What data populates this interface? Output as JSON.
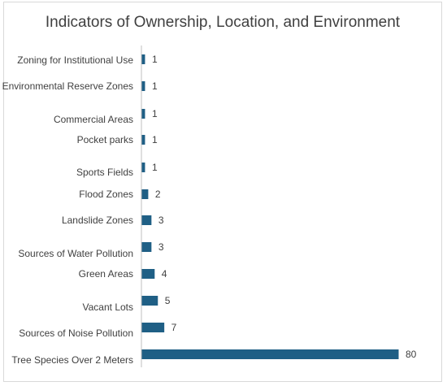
{
  "chart_data": {
    "type": "bar",
    "orientation": "horizontal",
    "title": "Indicators of Ownership, Location, and Environment",
    "categories": [
      "Zoning for Institutional Use",
      "Environmental Reserve Zones",
      "Commercial Areas",
      "Pocket parks",
      "Sports Fields",
      "Flood Zones",
      "Landslide Zones",
      "Sources of Water Pollution",
      "Green Areas",
      "Vacant Lots",
      "Sources of Noise Pollution",
      "Tree Species Over 2 Meters"
    ],
    "values": [
      1,
      1,
      1,
      1,
      1,
      2,
      3,
      3,
      4,
      5,
      7,
      80
    ],
    "xlim": [
      0,
      80
    ],
    "grid": false,
    "data_labels": true,
    "bar_color": "#1f5f85",
    "axis_color": "#bfbfbf"
  }
}
